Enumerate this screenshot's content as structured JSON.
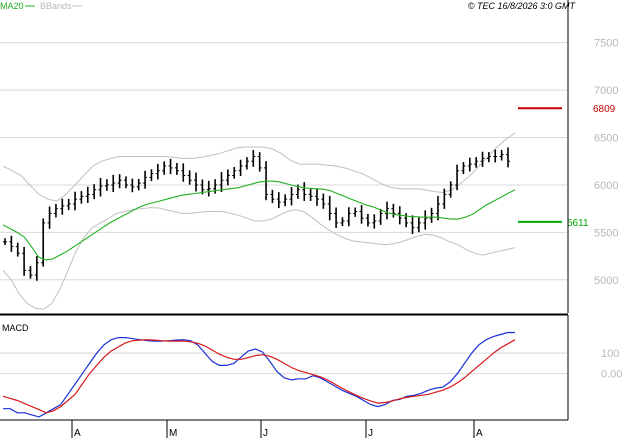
{
  "header": {
    "legend_ma": "MA20",
    "legend_bb": "BBands",
    "timestamp": "© TEC 16/8/2026 3:0 GMT"
  },
  "colors": {
    "price_bars": "#000000",
    "ma20": "#1fb01f",
    "bbands": "#c0c0c0",
    "resistance": "#cc0000",
    "support": "#00aa00",
    "macd_line": "#1a2fd6",
    "signal_line": "#d81a1a",
    "grid": "#d8d8d8",
    "axis_text": "#b8b8b8",
    "separator": "#000000"
  },
  "chart_data": [
    {
      "type": "ohlc",
      "panel": "price",
      "y_ticks": [
        "7500",
        "7000",
        "6500",
        "6000",
        "5500",
        "5000"
      ],
      "y_tick_values": [
        7500,
        7000,
        6500,
        6000,
        5500,
        5000
      ],
      "ylim": [
        4650,
        7950
      ],
      "x_ticks": [
        "A",
        "M",
        "J",
        "J",
        "A"
      ],
      "grid": true,
      "levels": [
        {
          "name": "resistance",
          "value": 6809,
          "label": "6809"
        },
        {
          "name": "support",
          "value": 5611,
          "label": "5611"
        }
      ],
      "series": [
        {
          "kind": "close",
          "values": [
            5400,
            5350,
            5280,
            5100,
            5050,
            5180,
            5600,
            5700,
            5750,
            5780,
            5800,
            5850,
            5880,
            5900,
            5950,
            5990,
            6000,
            6020,
            6050,
            6000,
            5980,
            6020,
            6080,
            6120,
            6150,
            6200,
            6180,
            6150,
            6100,
            6050,
            6000,
            5950,
            5960,
            6000,
            6050,
            6100,
            6150,
            6200,
            6250,
            6300,
            6180,
            5900,
            5850,
            5820,
            5850,
            5900,
            5950,
            5900,
            5880,
            5850,
            5800,
            5700,
            5600,
            5620,
            5700,
            5720,
            5650,
            5600,
            5620,
            5700,
            5750,
            5700,
            5650,
            5600,
            5550,
            5600,
            5650,
            5700,
            5800,
            5900,
            6000,
            6150,
            6200,
            6220,
            6250,
            6280,
            6300,
            6300,
            6320,
            6250
          ]
        },
        {
          "kind": "ma20",
          "values": [
            5580,
            5540,
            5500,
            5450,
            5350,
            5240,
            5210,
            5220,
            5260,
            5300,
            5350,
            5400,
            5450,
            5500,
            5550,
            5600,
            5640,
            5680,
            5720,
            5760,
            5790,
            5810,
            5830,
            5850,
            5870,
            5890,
            5900,
            5910,
            5920,
            5930,
            5940,
            5950,
            5960,
            5970,
            5990,
            6010,
            6030,
            6040,
            6040,
            6030,
            6010,
            5990,
            5975,
            5965,
            5960,
            5955,
            5940,
            5910,
            5880,
            5850,
            5820,
            5790,
            5770,
            5740,
            5710,
            5690,
            5680,
            5670,
            5665,
            5660,
            5660,
            5660,
            5650,
            5640,
            5640,
            5660,
            5690,
            5740,
            5790,
            5830,
            5870,
            5910,
            5950
          ]
        },
        {
          "kind": "bband_upper",
          "values": [
            6200,
            6150,
            6100,
            6000,
            5900,
            5850,
            5830,
            5900,
            6000,
            6100,
            6200,
            6250,
            6280,
            6300,
            6300,
            6300,
            6300,
            6300,
            6300,
            6290,
            6280,
            6280,
            6290,
            6310,
            6330,
            6360,
            6390,
            6400,
            6400,
            6400,
            6380,
            6330,
            6260,
            6220,
            6220,
            6220,
            6210,
            6200,
            6180,
            6150,
            6120,
            6070,
            6020,
            5980,
            5960,
            5960,
            5960,
            5950,
            5930,
            5920,
            5950,
            6020,
            6100,
            6200,
            6300,
            6400,
            6480,
            6550
          ]
        },
        {
          "kind": "bband_lower",
          "values": [
            5100,
            5000,
            4850,
            4750,
            4700,
            4690,
            4750,
            4900,
            5100,
            5300,
            5450,
            5550,
            5600,
            5650,
            5700,
            5720,
            5740,
            5750,
            5760,
            5760,
            5740,
            5720,
            5700,
            5700,
            5710,
            5720,
            5720,
            5720,
            5700,
            5680,
            5650,
            5620,
            5620,
            5640,
            5680,
            5720,
            5740,
            5720,
            5660,
            5590,
            5530,
            5480,
            5440,
            5410,
            5400,
            5390,
            5380,
            5370,
            5380,
            5400,
            5430,
            5460,
            5480,
            5470,
            5440,
            5400,
            5370,
            5320,
            5280,
            5260,
            5280,
            5300,
            5320,
            5340
          ]
        }
      ]
    },
    {
      "type": "line",
      "panel": "macd",
      "title": "MACD",
      "y_ticks": [
        "100",
        "0.00"
      ],
      "y_tick_values": [
        100,
        0
      ],
      "ylim": [
        -220,
        280
      ],
      "x_ticks": [
        "A",
        "M",
        "J",
        "J",
        "A"
      ],
      "grid": true,
      "series": [
        {
          "kind": "macd",
          "values": [
            -170,
            -170,
            -190,
            -190,
            -200,
            -210,
            -190,
            -170,
            -150,
            -100,
            -50,
            0,
            50,
            100,
            140,
            165,
            175,
            175,
            170,
            165,
            160,
            158,
            158,
            160,
            163,
            165,
            160,
            140,
            100,
            60,
            40,
            40,
            50,
            80,
            110,
            120,
            105,
            60,
            10,
            -20,
            -30,
            -25,
            -25,
            -10,
            -20,
            -40,
            -60,
            -80,
            -95,
            -110,
            -130,
            -150,
            -160,
            -150,
            -130,
            -125,
            -110,
            -105,
            -95,
            -80,
            -70,
            -65,
            -40,
            0,
            50,
            100,
            140,
            165,
            180,
            190,
            200,
            200
          ]
        },
        {
          "kind": "signal",
          "values": [
            -110,
            -120,
            -130,
            -145,
            -160,
            -175,
            -190,
            -180,
            -160,
            -130,
            -100,
            -50,
            0,
            40,
            80,
            110,
            130,
            150,
            160,
            163,
            165,
            163,
            160,
            158,
            158,
            158,
            155,
            148,
            135,
            115,
            95,
            80,
            70,
            70,
            78,
            88,
            92,
            85,
            70,
            50,
            30,
            15,
            5,
            -5,
            -15,
            -30,
            -50,
            -70,
            -88,
            -105,
            -120,
            -133,
            -143,
            -140,
            -132,
            -122,
            -115,
            -110,
            -105,
            -100,
            -90,
            -80,
            -65,
            -45,
            -20,
            10,
            40,
            70,
            100,
            125,
            145,
            165
          ]
        }
      ]
    }
  ]
}
